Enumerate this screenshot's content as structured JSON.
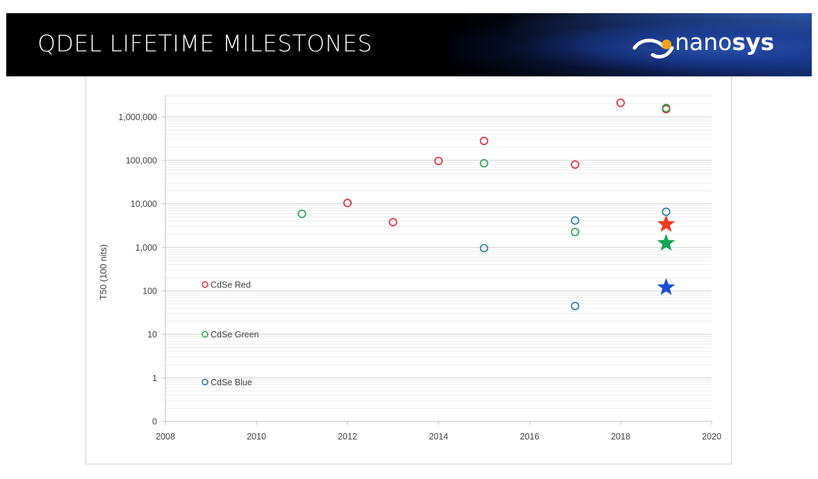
{
  "header": {
    "title": "QDEL LIFETIME MILESTONES",
    "logo": {
      "prefix": "nano",
      "suffix": "sys",
      "icon": "nanosys-swoosh-icon"
    }
  },
  "colors": {
    "red": "#e3222b",
    "green": "#1fa14a",
    "blue": "#1f6fb0",
    "star_red": "#f03a1e",
    "star_green": "#13a650",
    "star_blue": "#1c4fd6",
    "grid": "#d9d9d9",
    "axis_text": "#404040"
  },
  "chart_data": {
    "type": "scatter",
    "ylabel": "T50 (100 nits)",
    "xlabel": "",
    "xlim": [
      2008,
      2020
    ],
    "x_ticks": [
      "2008",
      "2010",
      "2012",
      "2014",
      "2016",
      "2018",
      "2020"
    ],
    "y_scale": "log",
    "y_ticks": [
      "0",
      "1",
      "10",
      "100",
      "1,000",
      "10,000",
      "100,000",
      "1,000,000"
    ],
    "grid": true,
    "legend_placement": "inside-left",
    "series": [
      {
        "name": "CdSe Red",
        "color": "red",
        "marker": "open-circle",
        "points": [
          {
            "x": 2012,
            "y": 10500
          },
          {
            "x": 2013,
            "y": 3800
          },
          {
            "x": 2014,
            "y": 97000
          },
          {
            "x": 2015,
            "y": 280000
          },
          {
            "x": 2017,
            "y": 80000
          },
          {
            "x": 2018,
            "y": 2100000
          },
          {
            "x": 2019,
            "y": 1500000
          }
        ]
      },
      {
        "name": "CdSe Green",
        "color": "green",
        "marker": "open-circle",
        "points": [
          {
            "x": 2011,
            "y": 5900
          },
          {
            "x": 2015,
            "y": 86000
          },
          {
            "x": 2017,
            "y": 2250
          },
          {
            "x": 2019,
            "y": 1600000
          }
        ]
      },
      {
        "name": "CdSe Blue",
        "color": "blue",
        "marker": "open-circle",
        "points": [
          {
            "x": 2015,
            "y": 960
          },
          {
            "x": 2017,
            "y": 4150
          },
          {
            "x": 2017,
            "y": 45
          },
          {
            "x": 2019,
            "y": 6600
          }
        ]
      }
    ],
    "highlight_stars": [
      {
        "x": 2019,
        "y": 3400,
        "color": "star_red"
      },
      {
        "x": 2019,
        "y": 1250,
        "color": "star_green"
      },
      {
        "x": 2019,
        "y": 120,
        "color": "star_blue"
      }
    ]
  }
}
